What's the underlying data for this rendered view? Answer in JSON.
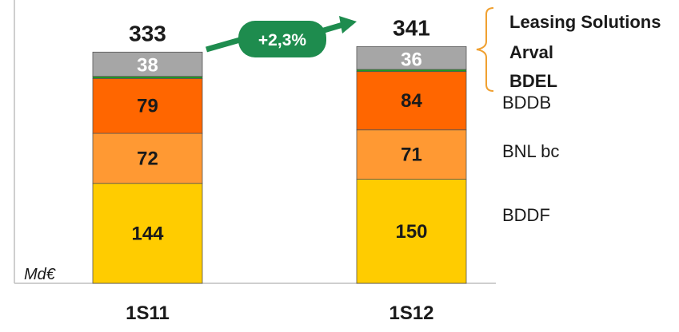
{
  "chart_data": {
    "type": "bar",
    "stacked": true,
    "unit": "Md€",
    "categories": [
      "1S11",
      "1S12"
    ],
    "totals": [
      333,
      341
    ],
    "growth_label": "+2,3%",
    "series": [
      {
        "name": "BDDF",
        "values": [
          144,
          150
        ],
        "color": "#FFCC00",
        "label_color": "#1a1a1a",
        "show_label": true
      },
      {
        "name": "BNL bc",
        "values": [
          72,
          71
        ],
        "color": "#FF9933",
        "label_color": "#1a1a1a",
        "show_label": true
      },
      {
        "name": "BDDB",
        "values": [
          79,
          84
        ],
        "color": "#FF6600",
        "label_color": "#1a1a1a",
        "show_label": true
      },
      {
        "name": "BDEL",
        "values": [
          3,
          3
        ],
        "color": "#1E9E1E",
        "show_label": false
      },
      {
        "name": "Arval + Leasing Solutions",
        "values": [
          35,
          33
        ],
        "color": "#A6A6A6",
        "show_label": false
      }
    ],
    "group_label_values": [
      38,
      36
    ],
    "group_label_color": "#ffffff",
    "legend": {
      "bracket_items": [
        "Leasing Solutions",
        "Arval",
        "BDEL"
      ],
      "items": [
        "BDDB",
        "BNL bc",
        "BDDF"
      ]
    },
    "colors": {
      "accent_green": "#1E8C4E",
      "bracket": "#F0A030",
      "axis": "#BFBFBF"
    },
    "gridlines": false
  }
}
